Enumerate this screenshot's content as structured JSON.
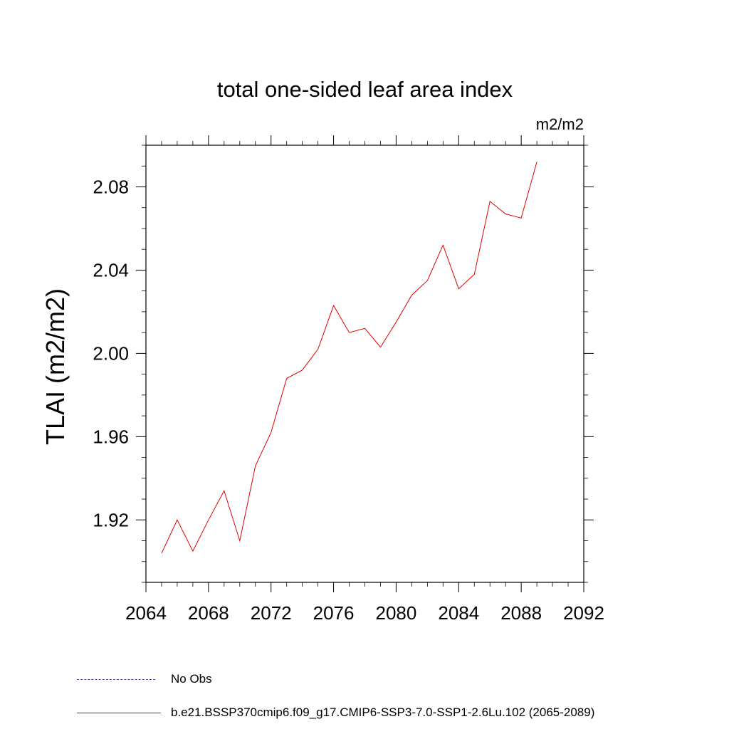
{
  "chart_data": {
    "type": "line",
    "title": "total one-sided leaf area index",
    "units_label": "m2/m2",
    "ylabel": "TLAI  (m2/m2)",
    "xlabel": "",
    "xlim": [
      2064,
      2092
    ],
    "ylim": [
      1.89,
      2.1
    ],
    "x_ticks": [
      2064,
      2068,
      2072,
      2076,
      2080,
      2084,
      2088,
      2092
    ],
    "x_tick_labels": [
      "2064",
      "2068",
      "2072",
      "2076",
      "2080",
      "2084",
      "2088",
      "2092"
    ],
    "y_ticks": [
      1.92,
      1.96,
      2.0,
      2.04,
      2.08
    ],
    "y_tick_labels": [
      "1.92",
      "1.96",
      "2.00",
      "2.04",
      "2.08"
    ],
    "grid": false,
    "legend_position": "bottom",
    "series": [
      {
        "name": "b.e21.BSSP370cmip6.f09_g17.CMIP6-SSP3-7.0-SSP1-2.6Lu.102 (2065-2089)",
        "color": "#e00000",
        "style": "solid",
        "x": [
          2065,
          2066,
          2067,
          2068,
          2069,
          2070,
          2071,
          2072,
          2073,
          2074,
          2075,
          2076,
          2077,
          2078,
          2079,
          2080,
          2081,
          2082,
          2083,
          2084,
          2085,
          2086,
          2087,
          2088,
          2089
        ],
        "y": [
          1.904,
          1.92,
          1.905,
          1.92,
          1.934,
          1.91,
          1.946,
          1.962,
          1.988,
          1.992,
          2.002,
          2.023,
          2.01,
          2.012,
          2.003,
          2.015,
          2.028,
          2.035,
          2.052,
          2.031,
          2.038,
          2.073,
          2.067,
          2.065,
          2.092
        ]
      }
    ],
    "legend": [
      {
        "label": "No Obs",
        "color": "#5040a0",
        "style": "dashed"
      },
      {
        "label": "b.e21.BSSP370cmip6.f09_g17.CMIP6-SSP3-7.0-SSP1-2.6Lu.102 (2065-2089)",
        "color": "#e00000",
        "style": "solid"
      }
    ]
  }
}
